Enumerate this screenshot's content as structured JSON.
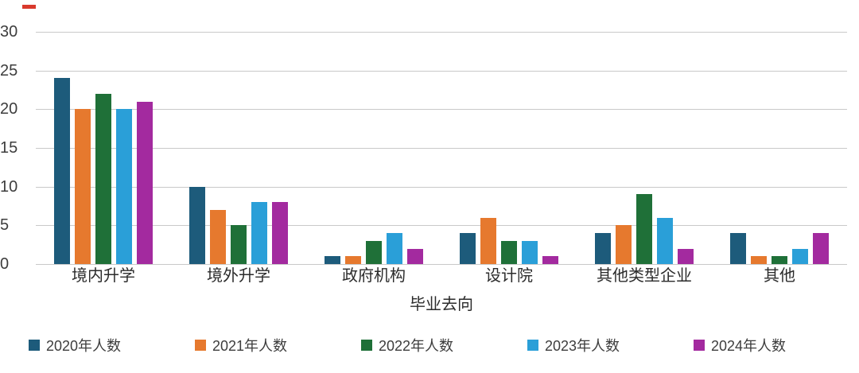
{
  "decoration": {
    "top_left_mark_color": "#d9392c"
  },
  "style": {
    "gridline_color": "#c9c9c9",
    "tick_label_color": "#3d3d3d",
    "category_label_color": "#2b2b2b",
    "background": "#ffffff"
  },
  "chart_data": {
    "type": "bar",
    "title": "",
    "xlabel": "毕业去向",
    "ylabel": "",
    "ylim": [
      0,
      30
    ],
    "yticks": [
      0,
      5,
      10,
      15,
      20,
      25,
      30
    ],
    "grid": "horizontal gridlines on",
    "legend_position": "bottom",
    "categories": [
      "境内升学",
      "境外升学",
      "政府机构",
      "设计院",
      "其他类型企业",
      "其他"
    ],
    "series": [
      {
        "name": "2020年人数",
        "color": "#1d5b7b",
        "values": [
          24,
          10,
          1,
          4,
          4,
          4
        ]
      },
      {
        "name": "2021年人数",
        "color": "#e6792e",
        "values": [
          20,
          7,
          1,
          6,
          5,
          1
        ]
      },
      {
        "name": "2022年人数",
        "color": "#1f7038",
        "values": [
          22,
          5,
          3,
          3,
          9,
          1
        ]
      },
      {
        "name": "2023年人数",
        "color": "#2a9fd8",
        "values": [
          20,
          8,
          4,
          3,
          6,
          2
        ]
      },
      {
        "name": "2024年人数",
        "color": "#a32a9f",
        "values": [
          21,
          8,
          2,
          1,
          2,
          4
        ]
      }
    ]
  }
}
